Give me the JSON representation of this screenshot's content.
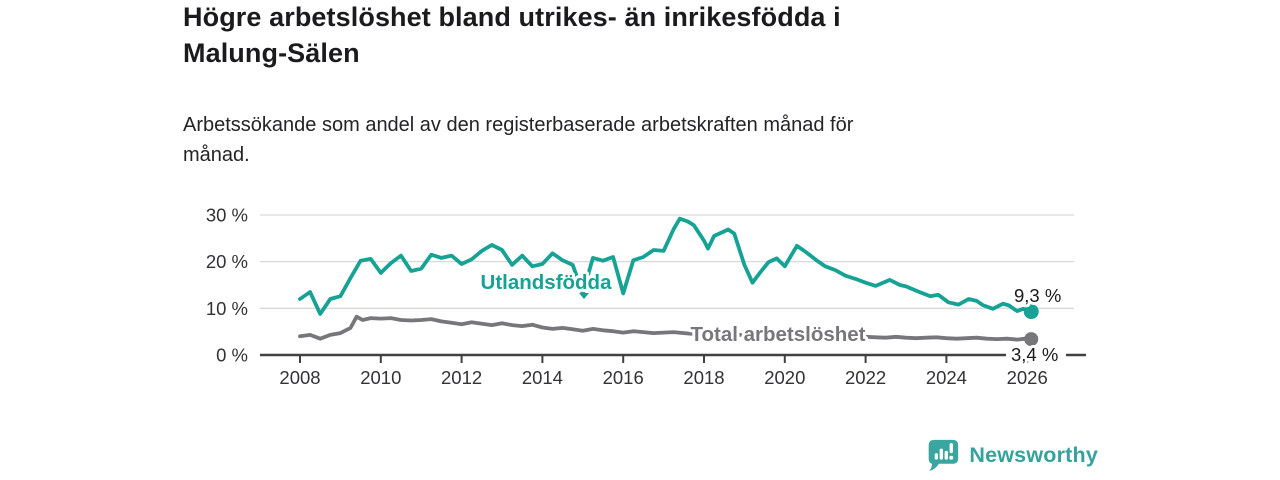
{
  "header": {
    "title": "Högre arbetslöshet bland utrikes- än inrikesfödda i\nMalung-Sälen",
    "subtitle": "Arbetssökande som andel av den registerbaserade arbetskraften månad för\nmånad."
  },
  "footer": {
    "brand": "Newsworthy",
    "logo_icon": "bar-chart-speech-bubble"
  },
  "colors": {
    "accent_teal": "#16a294",
    "series_gray": "#77777b",
    "grid": "#d9d9d9",
    "axis": "#414144",
    "tick_text": "#333336",
    "value_label_text": "#1b1b1d",
    "brand_teal": "#35a29c",
    "background": "#ffffff"
  },
  "chart_data": {
    "type": "line",
    "title": "Högre arbetslöshet bland utrikes- än inrikesfödda i Malung-Sälen",
    "subtitle": "Arbetssökande som andel av den registerbaserade arbetskraften månad för månad.",
    "grid": "horizontal",
    "legend_position": "inline-labels",
    "xlabel": "",
    "ylabel": "",
    "xlim": [
      2007.0,
      2026.6
    ],
    "ylim": [
      0,
      32
    ],
    "x_unit": "year",
    "y_unit": "percent",
    "yticks": [
      {
        "value": 0,
        "label": "0 %"
      },
      {
        "value": 10,
        "label": "10 %"
      },
      {
        "value": 20,
        "label": "20 %"
      },
      {
        "value": 30,
        "label": "30 %"
      }
    ],
    "xticks": [
      {
        "value": 2008,
        "label": "2008"
      },
      {
        "value": 2010,
        "label": "2010"
      },
      {
        "value": 2012,
        "label": "2012"
      },
      {
        "value": 2014,
        "label": "2014"
      },
      {
        "value": 2016,
        "label": "2016"
      },
      {
        "value": 2018,
        "label": "2018"
      },
      {
        "value": 2020,
        "label": "2020"
      },
      {
        "value": 2022,
        "label": "2022"
      },
      {
        "value": 2024,
        "label": "2024"
      },
      {
        "value": 2026,
        "label": "2026"
      }
    ],
    "series": [
      {
        "name": "Utlandsfödda",
        "color": "#16a294",
        "end_label": "9,3 %",
        "end_value": 9.3,
        "points": [
          [
            2008.0,
            12.0
          ],
          [
            2008.25,
            13.5
          ],
          [
            2008.5,
            8.8
          ],
          [
            2008.75,
            12.0
          ],
          [
            2009.0,
            12.6
          ],
          [
            2009.25,
            16.5
          ],
          [
            2009.5,
            20.2
          ],
          [
            2009.75,
            20.6
          ],
          [
            2010.0,
            17.6
          ],
          [
            2010.25,
            19.7
          ],
          [
            2010.5,
            21.3
          ],
          [
            2010.75,
            18.0
          ],
          [
            2011.0,
            18.5
          ],
          [
            2011.25,
            21.5
          ],
          [
            2011.5,
            20.8
          ],
          [
            2011.75,
            21.3
          ],
          [
            2012.0,
            19.5
          ],
          [
            2012.25,
            20.5
          ],
          [
            2012.5,
            22.3
          ],
          [
            2012.75,
            23.6
          ],
          [
            2013.0,
            22.5
          ],
          [
            2013.25,
            19.3
          ],
          [
            2013.5,
            21.3
          ],
          [
            2013.75,
            19.0
          ],
          [
            2014.0,
            19.5
          ],
          [
            2014.25,
            21.8
          ],
          [
            2014.5,
            20.3
          ],
          [
            2014.75,
            19.3
          ],
          [
            2015.0,
            13.2
          ],
          [
            2015.25,
            20.8
          ],
          [
            2015.5,
            20.2
          ],
          [
            2015.75,
            21.0
          ],
          [
            2016.0,
            13.2
          ],
          [
            2016.25,
            20.3
          ],
          [
            2016.5,
            21.0
          ],
          [
            2016.75,
            22.5
          ],
          [
            2017.0,
            22.3
          ],
          [
            2017.25,
            27.0
          ],
          [
            2017.4,
            29.2
          ],
          [
            2017.6,
            28.6
          ],
          [
            2017.75,
            27.8
          ],
          [
            2018.0,
            24.5
          ],
          [
            2018.1,
            22.8
          ],
          [
            2018.25,
            25.5
          ],
          [
            2018.6,
            26.9
          ],
          [
            2018.75,
            26.0
          ],
          [
            2019.0,
            19.3
          ],
          [
            2019.2,
            15.5
          ],
          [
            2019.4,
            17.8
          ],
          [
            2019.6,
            19.9
          ],
          [
            2019.8,
            20.7
          ],
          [
            2020.0,
            19.0
          ],
          [
            2020.3,
            23.4
          ],
          [
            2020.5,
            22.2
          ],
          [
            2020.8,
            20.2
          ],
          [
            2021.0,
            19.0
          ],
          [
            2021.25,
            18.2
          ],
          [
            2021.5,
            17.0
          ],
          [
            2021.75,
            16.3
          ],
          [
            2022.0,
            15.5
          ],
          [
            2022.25,
            14.8
          ],
          [
            2022.6,
            16.1
          ],
          [
            2022.85,
            15.0
          ],
          [
            2023.0,
            14.7
          ],
          [
            2023.3,
            13.6
          ],
          [
            2023.6,
            12.6
          ],
          [
            2023.8,
            12.9
          ],
          [
            2024.05,
            11.3
          ],
          [
            2024.3,
            10.8
          ],
          [
            2024.55,
            12.0
          ],
          [
            2024.75,
            11.6
          ],
          [
            2024.9,
            10.7
          ],
          [
            2025.15,
            9.9
          ],
          [
            2025.4,
            11.0
          ],
          [
            2025.55,
            10.6
          ],
          [
            2025.75,
            9.4
          ],
          [
            2025.9,
            9.9
          ],
          [
            2026.1,
            9.3
          ]
        ]
      },
      {
        "name": "Total arbetslöshet",
        "color": "#77777b",
        "end_label": "3,4 %",
        "end_value": 3.4,
        "points": [
          [
            2008.0,
            4.0
          ],
          [
            2008.25,
            4.3
          ],
          [
            2008.5,
            3.5
          ],
          [
            2008.75,
            4.3
          ],
          [
            2009.0,
            4.7
          ],
          [
            2009.25,
            5.8
          ],
          [
            2009.4,
            8.2
          ],
          [
            2009.55,
            7.5
          ],
          [
            2009.75,
            7.9
          ],
          [
            2010.0,
            7.8
          ],
          [
            2010.25,
            7.9
          ],
          [
            2010.5,
            7.5
          ],
          [
            2010.75,
            7.4
          ],
          [
            2011.0,
            7.5
          ],
          [
            2011.25,
            7.7
          ],
          [
            2011.5,
            7.2
          ],
          [
            2011.75,
            6.9
          ],
          [
            2012.0,
            6.6
          ],
          [
            2012.25,
            7.0
          ],
          [
            2012.5,
            6.7
          ],
          [
            2012.75,
            6.4
          ],
          [
            2013.0,
            6.8
          ],
          [
            2013.25,
            6.4
          ],
          [
            2013.5,
            6.2
          ],
          [
            2013.75,
            6.5
          ],
          [
            2014.0,
            5.9
          ],
          [
            2014.25,
            5.6
          ],
          [
            2014.5,
            5.8
          ],
          [
            2014.75,
            5.5
          ],
          [
            2015.0,
            5.2
          ],
          [
            2015.25,
            5.6
          ],
          [
            2015.5,
            5.3
          ],
          [
            2015.75,
            5.1
          ],
          [
            2016.0,
            4.8
          ],
          [
            2016.25,
            5.1
          ],
          [
            2016.5,
            4.9
          ],
          [
            2016.75,
            4.7
          ],
          [
            2017.0,
            4.8
          ],
          [
            2017.25,
            4.9
          ],
          [
            2017.5,
            4.7
          ],
          [
            2017.75,
            4.5
          ],
          [
            2018.0,
            4.3
          ],
          [
            2018.25,
            4.6
          ],
          [
            2018.5,
            4.4
          ],
          [
            2018.75,
            4.2
          ],
          [
            2019.0,
            4.4
          ],
          [
            2019.25,
            4.5
          ],
          [
            2019.5,
            4.7
          ],
          [
            2019.75,
            4.8
          ],
          [
            2020.0,
            4.6
          ],
          [
            2020.25,
            5.1
          ],
          [
            2020.5,
            5.0
          ],
          [
            2020.75,
            4.8
          ],
          [
            2021.0,
            4.6
          ],
          [
            2021.25,
            4.4
          ],
          [
            2021.5,
            4.2
          ],
          [
            2021.75,
            4.0
          ],
          [
            2022.0,
            3.9
          ],
          [
            2022.25,
            3.8
          ],
          [
            2022.5,
            3.7
          ],
          [
            2022.75,
            3.9
          ],
          [
            2023.0,
            3.7
          ],
          [
            2023.25,
            3.6
          ],
          [
            2023.5,
            3.7
          ],
          [
            2023.75,
            3.8
          ],
          [
            2024.0,
            3.6
          ],
          [
            2024.25,
            3.5
          ],
          [
            2024.5,
            3.6
          ],
          [
            2024.75,
            3.7
          ],
          [
            2025.0,
            3.5
          ],
          [
            2025.25,
            3.4
          ],
          [
            2025.5,
            3.5
          ],
          [
            2025.75,
            3.3
          ],
          [
            2025.95,
            3.5
          ],
          [
            2026.1,
            3.4
          ]
        ]
      }
    ]
  }
}
